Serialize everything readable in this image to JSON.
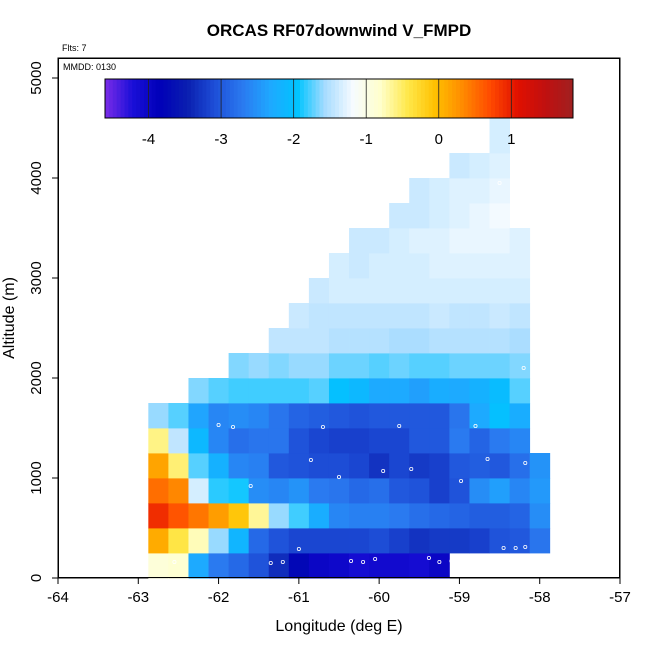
{
  "chart_data": {
    "type": "heatmap",
    "title": "ORCAS RF07downwind V_FMPD",
    "subtitle_flts": "Flts: 7",
    "subtitle_mmdd": "MMDD: 0130",
    "xlabel": "Longitude (deg E)",
    "ylabel": "Altitude (m)",
    "xlim": [
      -64,
      -57
    ],
    "ylim": [
      0,
      5200
    ],
    "xticks": [
      "-64",
      "-63",
      "-62",
      "-61",
      "-60",
      "-59",
      "-58",
      "-57"
    ],
    "yticks": [
      "0",
      "1000",
      "2000",
      "3000",
      "4000",
      "5000"
    ],
    "cell_width_deg": 0.25,
    "cell_height_m": 250,
    "colorbar": {
      "range": [
        -4.6,
        1.85
      ],
      "ticks": [
        "-4",
        "-3",
        "-2",
        "-1",
        "0",
        "1"
      ],
      "colors": [
        "#7b2ce8",
        "#1a0fd8",
        "#0000b8",
        "#0a1fb0",
        "#1e4fd8",
        "#2a7af0",
        "#1fa8ff",
        "#00c4ff",
        "#a8dcff",
        "#f6fbff",
        "#ffffcc",
        "#ffe84a",
        "#ffc000",
        "#ff8a00",
        "#ff4a00",
        "#e01000",
        "#c01010",
        "#a02020"
      ]
    },
    "columns": [
      {
        "lon": -62.75,
        "values": [
          -0.9,
          0.1,
          0.9,
          0.5,
          0.15,
          -0.6,
          -1.6
        ]
      },
      {
        "lon": -62.5,
        "values": [
          -0.85,
          -0.4,
          0.65,
          0.35,
          -0.55,
          -1.45,
          -1.75
        ]
      },
      {
        "lon": -62.25,
        "values": [
          -2.3,
          -0.75,
          0.45,
          -1.35,
          -1.75,
          -2.1,
          -2.35,
          -1.65
        ]
      },
      {
        "lon": -62.0,
        "values": [
          -2.7,
          -1.6,
          0.2,
          -1.85,
          -2.2,
          -2.6,
          -2.6,
          -1.75
        ]
      },
      {
        "lon": -61.75,
        "values": [
          -2.85,
          -2.15,
          -0.1,
          -1.9,
          -2.6,
          -2.8,
          -2.55,
          -1.8,
          -1.65
        ]
      },
      {
        "lon": -61.5,
        "values": [
          -3.05,
          -2.85,
          -0.65,
          -2.55,
          -2.65,
          -2.75,
          -2.6,
          -1.8,
          -1.6
        ]
      },
      {
        "lon": -61.25,
        "values": [
          -3.35,
          -3.05,
          -1.6,
          -2.6,
          -3.0,
          -2.75,
          -2.75,
          -1.8,
          -1.65,
          -1.45
        ]
      },
      {
        "lon": -61.0,
        "values": [
          -3.75,
          -3.15,
          -1.8,
          -2.5,
          -3.05,
          -3.05,
          -2.9,
          -1.8,
          -1.6,
          -1.45,
          -1.4
        ]
      },
      {
        "lon": -60.75,
        "values": [
          -4.0,
          -3.15,
          -2.25,
          -2.7,
          -3.1,
          -3.15,
          -2.95,
          -1.75,
          -1.6,
          -1.45,
          -1.45,
          -1.4
        ]
      },
      {
        "lon": -60.5,
        "values": [
          -4.05,
          -3.15,
          -2.6,
          -2.75,
          -3.1,
          -3.2,
          -3.0,
          -2.0,
          -1.7,
          -1.5,
          -1.45,
          -1.35,
          -1.35
        ]
      },
      {
        "lon": -60.25,
        "values": [
          -4.15,
          -3.15,
          -2.65,
          -2.85,
          -3.15,
          -3.2,
          -3.05,
          -2.1,
          -1.7,
          -1.5,
          -1.45,
          -1.35,
          -1.4,
          -1.4
        ]
      },
      {
        "lon": -60.0,
        "values": [
          -4.1,
          -3.1,
          -2.65,
          -2.8,
          -3.3,
          -3.15,
          -3.0,
          -2.3,
          -1.75,
          -1.5,
          -1.45,
          -1.35,
          -1.35,
          -1.4
        ]
      },
      {
        "lon": -59.75,
        "values": [
          -4.1,
          -3.2,
          -2.7,
          -3.0,
          -3.15,
          -3.15,
          -3.0,
          -2.3,
          -1.7,
          -1.55,
          -1.45,
          -1.35,
          -1.35,
          -1.35,
          -1.4
        ]
      },
      {
        "lon": -59.5,
        "values": [
          -4.15,
          -3.3,
          -2.8,
          -3.05,
          -3.25,
          -3.0,
          -3.0,
          -2.4,
          -1.75,
          -1.55,
          -1.45,
          -1.35,
          -1.35,
          -1.3,
          -1.4,
          -1.4
        ]
      },
      {
        "lon": -59.25,
        "values": [
          -4.0,
          -3.25,
          -2.85,
          -3.2,
          -3.2,
          -3.0,
          -3.0,
          -2.25,
          -1.75,
          -1.5,
          -1.4,
          -1.35,
          -1.3,
          -1.3,
          -1.35,
          -1.35
        ]
      },
      {
        "lon": -59.0,
        "values": [
          null,
          -3.25,
          -2.9,
          -3.05,
          -3.0,
          -2.7,
          -2.75,
          -2.3,
          -1.7,
          -1.5,
          -1.45,
          -1.35,
          -1.3,
          -1.25,
          -1.3,
          -1.3,
          -1.4
        ]
      },
      {
        "lon": -58.75,
        "values": [
          null,
          -3.2,
          -2.95,
          -2.55,
          -2.95,
          -2.9,
          -2.3,
          -2.2,
          -1.7,
          -1.5,
          -1.45,
          -1.35,
          -1.3,
          -1.25,
          -1.25,
          -1.3,
          -1.35
        ]
      },
      {
        "lon": -58.5,
        "values": [
          null,
          -3.05,
          -2.95,
          -2.4,
          -3.0,
          -2.7,
          -2.0,
          -2.05,
          -1.7,
          -1.5,
          -1.4,
          -1.35,
          -1.3,
          -1.25,
          -1.2,
          -1.25,
          -1.3,
          -1.35,
          -1.35
        ]
      },
      {
        "lon": -58.25,
        "values": [
          null,
          -3.0,
          -2.9,
          -2.6,
          -2.8,
          -2.6,
          -2.25,
          -1.75,
          -1.65,
          -1.55,
          -1.45,
          -1.35,
          -1.3,
          -1.3
        ]
      },
      {
        "lon": -58.0,
        "values": [
          null,
          -2.75,
          -2.55,
          -2.45,
          -2.5
        ]
      }
    ],
    "points": [
      {
        "x": -62.98,
        "y": 650
      },
      {
        "x": -62.55,
        "y": 160
      },
      {
        "x": -62.0,
        "y": 1530
      },
      {
        "x": -61.82,
        "y": 1510
      },
      {
        "x": -61.6,
        "y": 920
      },
      {
        "x": -61.35,
        "y": 150
      },
      {
        "x": -61.2,
        "y": 160
      },
      {
        "x": -61.0,
        "y": 290
      },
      {
        "x": -60.85,
        "y": 1180
      },
      {
        "x": -60.7,
        "y": 1510
      },
      {
        "x": -60.5,
        "y": 1010
      },
      {
        "x": -60.35,
        "y": 170
      },
      {
        "x": -60.2,
        "y": 160
      },
      {
        "x": -60.05,
        "y": 190
      },
      {
        "x": -59.95,
        "y": 1070
      },
      {
        "x": -59.75,
        "y": 1520
      },
      {
        "x": -59.6,
        "y": 1090
      },
      {
        "x": -59.38,
        "y": 200
      },
      {
        "x": -59.25,
        "y": 160
      },
      {
        "x": -59.1,
        "y": 170
      },
      {
        "x": -58.98,
        "y": 970
      },
      {
        "x": -58.8,
        "y": 1520
      },
      {
        "x": -58.65,
        "y": 1190
      },
      {
        "x": -58.45,
        "y": 300
      },
      {
        "x": -58.3,
        "y": 300
      },
      {
        "x": -58.2,
        "y": 2100
      },
      {
        "x": -58.18,
        "y": 1150
      },
      {
        "x": -58.18,
        "y": 310
      },
      {
        "x": -58.5,
        "y": 3950
      }
    ]
  }
}
